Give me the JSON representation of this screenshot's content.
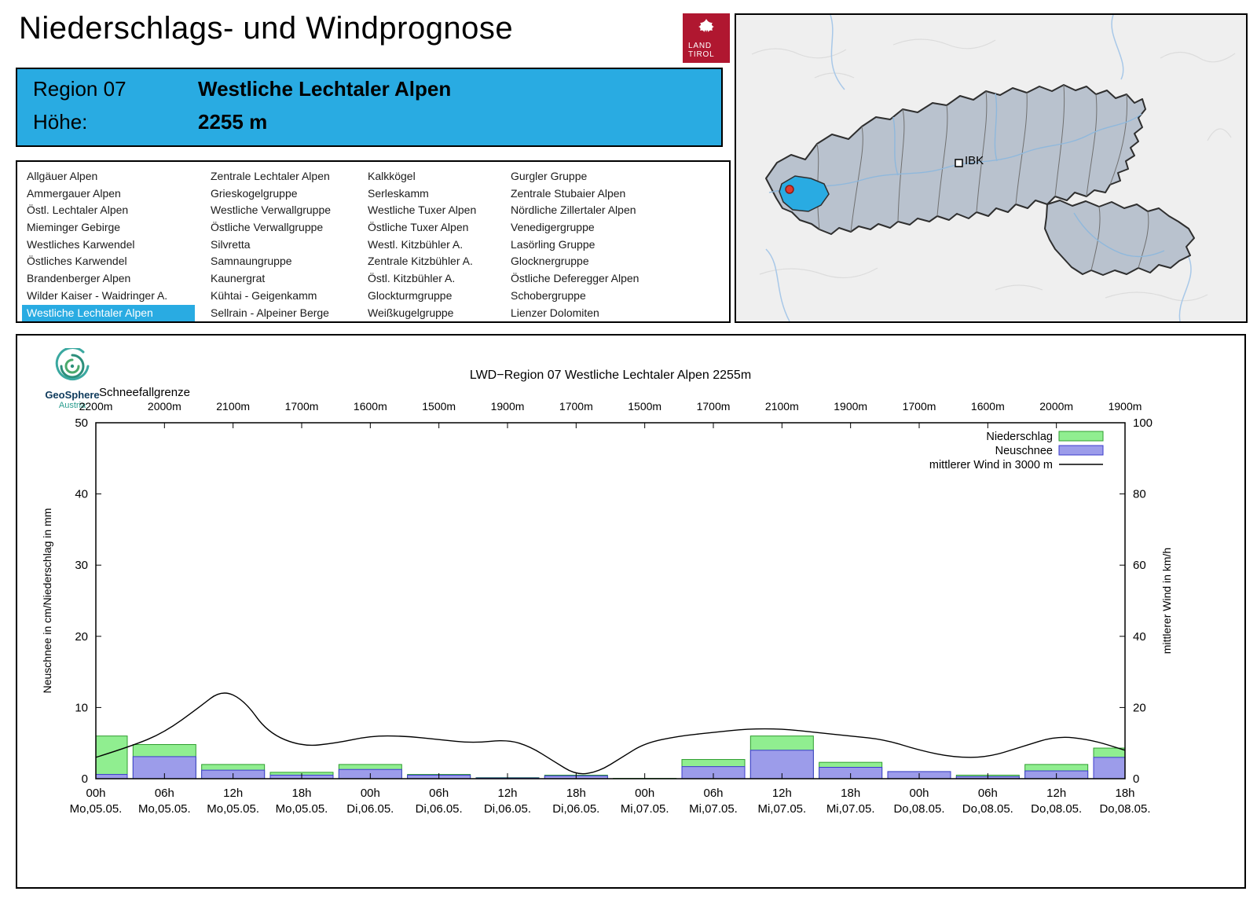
{
  "page": {
    "title": "Niederschlags- und Windprognose"
  },
  "tirol_logo": {
    "line1": "LAND",
    "line2": "TIROL"
  },
  "region_box": {
    "region_label": "Region 07",
    "region_name": "Westliche Lechtaler Alpen",
    "height_label": "Höhe:",
    "height_value": "2255 m"
  },
  "region_list": {
    "selected": "Westliche Lechtaler Alpen",
    "columns": [
      [
        "Allgäuer Alpen",
        "Ammergauer Alpen",
        "Östl. Lechtaler Alpen",
        "Mieminger Gebirge",
        "Westliches Karwendel",
        "Östliches Karwendel",
        "Brandenberger Alpen",
        "Wilder Kaiser - Waidringer A.",
        "Westliche Lechtaler Alpen"
      ],
      [
        "Zentrale Lechtaler Alpen",
        "Grieskogelgruppe",
        "Westliche Verwallgruppe",
        "Östliche Verwallgruppe",
        "Silvretta",
        "Samnaungruppe",
        "Kaunergrat",
        "Kühtai - Geigenkamm",
        "Sellrain - Alpeiner Berge"
      ],
      [
        "Kalkkögel",
        "Serleskamm",
        "Westliche Tuxer Alpen",
        "Östliche Tuxer Alpen",
        "Westl. Kitzbühler A.",
        "Zentrale Kitzbühler A.",
        "Östl. Kitzbühler A.",
        "Glockturmgruppe",
        "Weißkugelgruppe"
      ],
      [
        "Gurgler Gruppe",
        "Zentrale Stubaier Alpen",
        "Nördliche Zillertaler Alpen",
        "Venedigergruppe",
        "Lasörling Gruppe",
        "Glocknergruppe",
        "Östliche Deferegger Alpen",
        "Schobergruppe",
        "Lienzer Dolomiten"
      ]
    ]
  },
  "map": {
    "city_label": "IBK"
  },
  "geosphere": {
    "name": "GeoSphere",
    "sub": "Austria"
  },
  "colors": {
    "accent": "#29abe2",
    "precip_fill": "#90ee90",
    "precip_border": "#2f9e2f",
    "snow_fill": "#9c9cea",
    "snow_border": "#3c3ccc",
    "wind": "#000000",
    "logo_red": "#b01730"
  },
  "chart_data": {
    "type": "bar+line",
    "title": "LWD−Region 07 Westliche Lechtaler Alpen 2255m",
    "snowline_label": "Schneefallgrenze",
    "snowline_values": [
      "2200m",
      "2000m",
      "2100m",
      "1700m",
      "1600m",
      "1500m",
      "1900m",
      "1700m",
      "1500m",
      "1700m",
      "2100m",
      "1900m",
      "1700m",
      "1600m",
      "2000m",
      "1900m"
    ],
    "x_tick_top": [
      "00h",
      "06h",
      "12h",
      "18h",
      "00h",
      "06h",
      "12h",
      "18h",
      "00h",
      "06h",
      "12h",
      "18h",
      "00h",
      "06h",
      "12h",
      "18h"
    ],
    "x_tick_bottom": [
      "Mo,05.05.",
      "Mo,05.05.",
      "Mo,05.05.",
      "Mo,05.05.",
      "Di,06.05.",
      "Di,06.05.",
      "Di,06.05.",
      "Di,06.05.",
      "Mi,07.05.",
      "Mi,07.05.",
      "Mi,07.05.",
      "Mi,07.05.",
      "Do,08.05.",
      "Do,08.05.",
      "Do,08.05.",
      "Do,08.05."
    ],
    "ylabel_left": "Neuschnee in cm/Niederschlag in mm",
    "ylabel_right": "mittlerer Wind in km/h",
    "ylim_left": [
      0,
      50
    ],
    "ylim_right": [
      0,
      100
    ],
    "yticks_left": [
      0,
      10,
      20,
      30,
      40,
      50
    ],
    "yticks_right": [
      0,
      20,
      40,
      60,
      80,
      100
    ],
    "legend": [
      {
        "label": "Niederschlag",
        "type": "box",
        "color": "#90ee90",
        "border": "#2f9e2f"
      },
      {
        "label": "Neuschnee",
        "type": "box",
        "color": "#9c9cea",
        "border": "#3c3ccc"
      },
      {
        "label": "mittlerer Wind in 3000 m",
        "type": "line",
        "color": "#000000"
      }
    ],
    "niederschlag": [
      6,
      4.8,
      2,
      0.9,
      2,
      0.6,
      0.15,
      0.5,
      0.05,
      2.7,
      6,
      2.3,
      1,
      0.5,
      2,
      4.3
    ],
    "neuschnee": [
      0.6,
      3.1,
      1.2,
      0.5,
      1.3,
      0.5,
      0.1,
      0.4,
      0,
      1.7,
      4,
      1.6,
      1,
      0.3,
      1.1,
      3
    ],
    "wind_x_hours": [
      0,
      3,
      6,
      9,
      11,
      13,
      15,
      18,
      21,
      24,
      27,
      30,
      33,
      36,
      38,
      40,
      42,
      44,
      46,
      48,
      51,
      54,
      57,
      60,
      63,
      66,
      69,
      72,
      75,
      78,
      81,
      84,
      87,
      90
    ],
    "wind_kmh": [
      6,
      9,
      13,
      20,
      25,
      22,
      13,
      9,
      10,
      12,
      12,
      11,
      10,
      11,
      9,
      5,
      1,
      2,
      6,
      10,
      12,
      13,
      14,
      14,
      13,
      12,
      11,
      8,
      6,
      6,
      9,
      12,
      11,
      8
    ]
  }
}
